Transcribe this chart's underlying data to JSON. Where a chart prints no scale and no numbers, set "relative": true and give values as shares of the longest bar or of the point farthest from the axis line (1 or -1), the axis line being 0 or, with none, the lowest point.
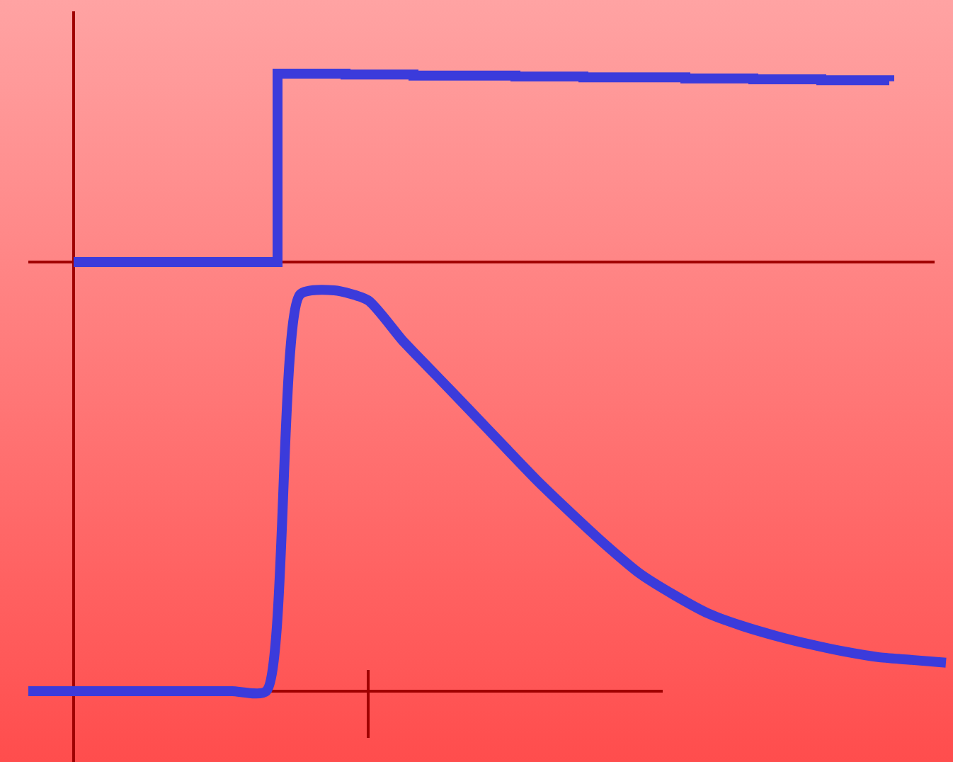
{
  "chart_data": [
    {
      "type": "step",
      "relative": true,
      "categories": [
        null,
        null,
        null,
        null,
        null,
        null,
        null,
        null,
        null,
        null,
        null,
        null,
        null,
        null,
        null,
        null,
        null,
        null,
        null,
        null,
        null,
        null,
        null,
        null,
        null
      ],
      "series": [
        {
          "color": "#3b3bdb",
          "values": [
            0,
            0,
            0,
            0,
            0,
            0,
            1,
            1,
            0.995,
            0.995,
            0.99,
            0.99,
            0.99,
            0.985,
            0.985,
            0.98,
            0.98,
            0.98,
            0.975,
            0.975,
            0.97,
            0.97,
            0.965,
            0.965,
            0.96
          ]
        }
      ]
    },
    {
      "type": "line",
      "relative": true,
      "categories": [
        null,
        null,
        null,
        null,
        null,
        null,
        null,
        null,
        null,
        null,
        null,
        null,
        null,
        null,
        null,
        null,
        null,
        null,
        null,
        null,
        null,
        null,
        null,
        null,
        null,
        null,
        null,
        null
      ],
      "series": [
        {
          "color": "#3b3bdb",
          "values": [
            0,
            0,
            0,
            0,
            0,
            0,
            0,
            0,
            0.99,
            1,
            0.975,
            0.876,
            0.788,
            0.7,
            0.611,
            0.523,
            0.442,
            0.364,
            0.293,
            0.24,
            0.194,
            0.163,
            0.138,
            0.117,
            0.099,
            0.085,
            0.078,
            0.071
          ]
        }
      ]
    }
  ]
}
